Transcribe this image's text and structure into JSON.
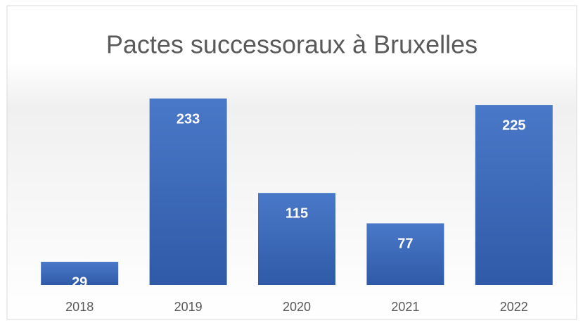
{
  "chart_data": {
    "type": "bar",
    "title": "Pactes successoraux à Bruxelles",
    "categories": [
      "2018",
      "2019",
      "2020",
      "2021",
      "2022"
    ],
    "values": [
      29,
      233,
      115,
      77,
      225
    ],
    "color": "#4472c4"
  }
}
